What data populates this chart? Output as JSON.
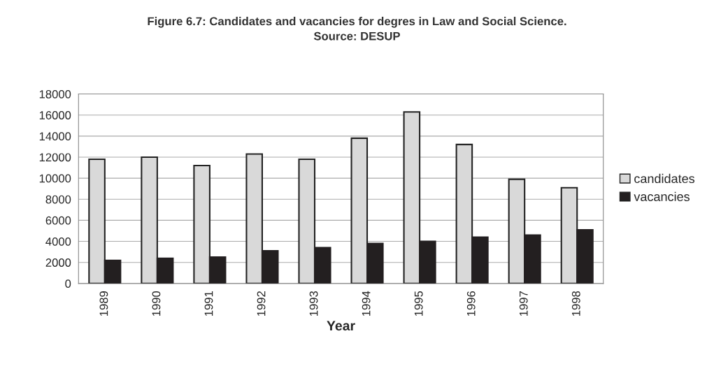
{
  "chart_data": {
    "type": "bar",
    "title": "Figure 6.7: Candidates and vacancies for degres in Law and Social Science.",
    "subtitle": "Source: DESUP",
    "xlabel": "Year",
    "categories": [
      "1989",
      "1990",
      "1991",
      "1992",
      "1993",
      "1994",
      "1995",
      "1996",
      "1997",
      "1998"
    ],
    "series": [
      {
        "name": "candidates",
        "color": "#d9d9d9",
        "values": [
          11800,
          12000,
          11200,
          12300,
          11800,
          13800,
          16300,
          13200,
          9900,
          9100
        ]
      },
      {
        "name": "vacancies",
        "color": "#231f20",
        "values": [
          2200,
          2400,
          2500,
          3100,
          3400,
          3800,
          4000,
          4400,
          4600,
          5100
        ]
      }
    ],
    "ylim": [
      0,
      18000
    ],
    "yticks": [
      0,
      2000,
      4000,
      6000,
      8000,
      10000,
      12000,
      14000,
      16000,
      18000
    ],
    "grid": "y",
    "legend": "right"
  }
}
